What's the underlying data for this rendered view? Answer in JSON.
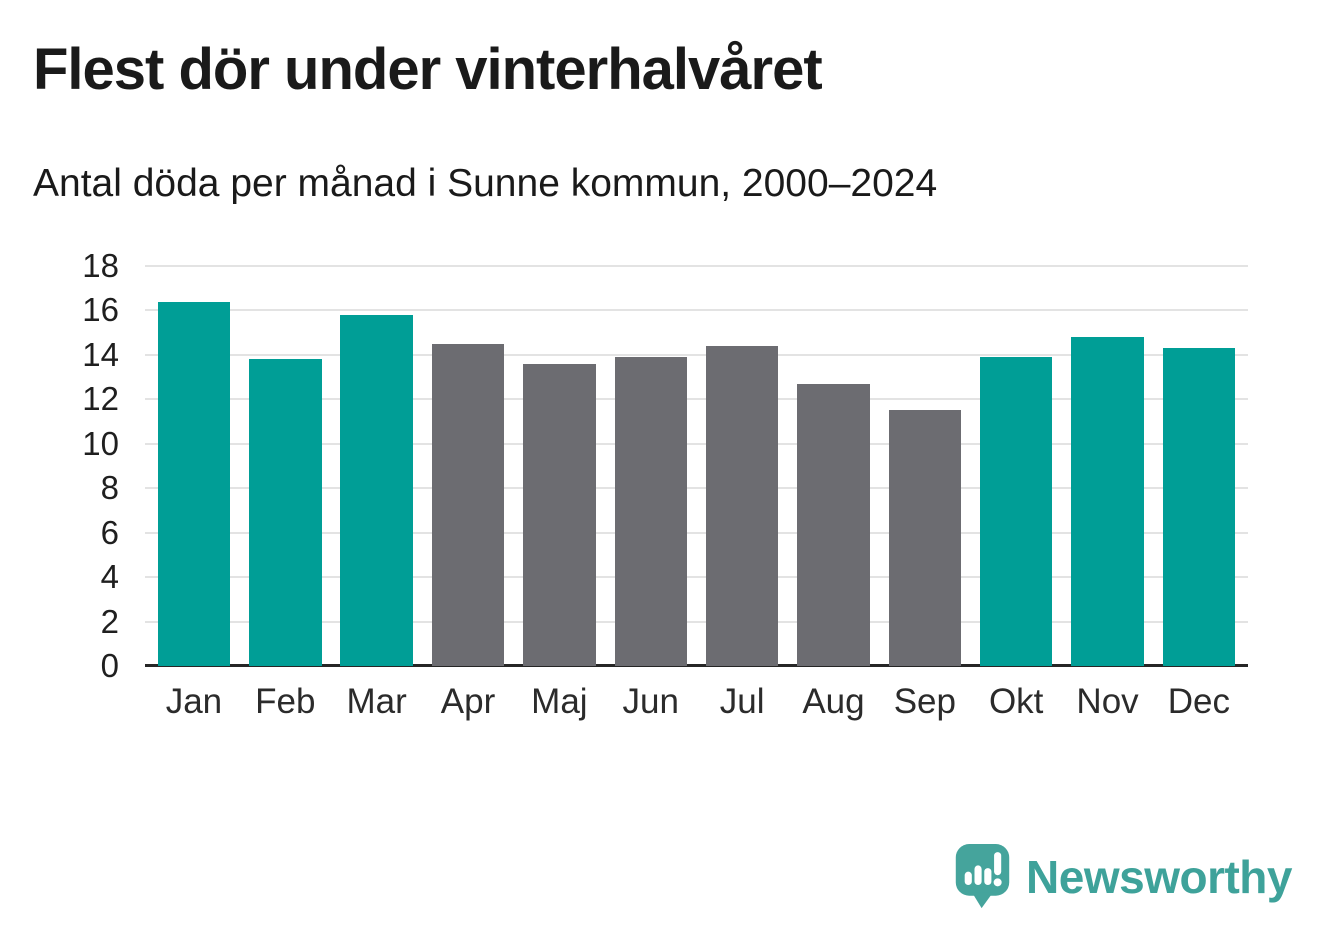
{
  "title": "Flest dör under vinterhalvåret",
  "subtitle": "Antal döda per månad i Sunne kommun, 2000–2024",
  "chart_data": {
    "type": "bar",
    "categories": [
      "Jan",
      "Feb",
      "Mar",
      "Apr",
      "Maj",
      "Jun",
      "Jul",
      "Aug",
      "Sep",
      "Okt",
      "Nov",
      "Dec"
    ],
    "values": [
      16.4,
      13.8,
      15.8,
      14.5,
      13.6,
      13.9,
      14.4,
      12.7,
      11.5,
      13.9,
      14.8,
      14.3
    ],
    "bar_colors": [
      "teal",
      "teal",
      "teal",
      "gray",
      "gray",
      "gray",
      "gray",
      "gray",
      "gray",
      "teal",
      "teal",
      "teal"
    ],
    "colors": {
      "teal": "#009e96",
      "gray": "#6c6c71"
    },
    "title": "Flest dör under vinterhalvåret",
    "subtitle": "Antal döda per månad i Sunne kommun, 2000–2024",
    "xlabel": "",
    "ylabel": "",
    "ylim": [
      0,
      18
    ],
    "yticks": [
      0,
      2,
      4,
      6,
      8,
      10,
      12,
      14,
      16,
      18
    ],
    "grid": "horizontal",
    "legend": "none",
    "gridline_color": "#e3e3e3",
    "axis_color": "#262626"
  },
  "footer": {
    "brand": "Newsworthy",
    "brand_color": "#3ea29a",
    "logo_icon": "newsworthy-speech-bubble-chart-icon"
  }
}
